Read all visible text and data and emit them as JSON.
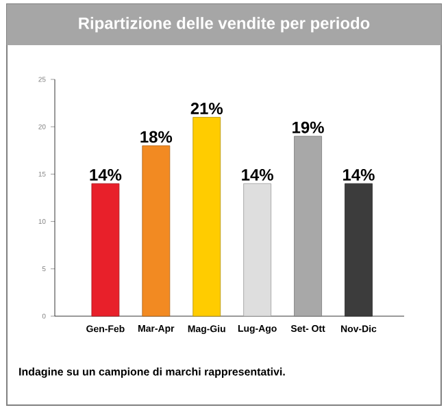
{
  "chart_data": {
    "type": "bar",
    "title": "Ripartizione delle vendite per periodo",
    "categories": [
      "Gen-Feb",
      "Mar-Apr",
      "Mag-Giu",
      "Lug-Ago",
      "Set- Ott",
      "Nov-Dic"
    ],
    "values": [
      14,
      18,
      21,
      14,
      19,
      14
    ],
    "value_labels": [
      "14%",
      "18%",
      "21%",
      "14%",
      "19%",
      "14%"
    ],
    "colors": [
      "#e8202a",
      "#f28a22",
      "#ffcc00",
      "#dedede",
      "#a8a8a8",
      "#3c3c3c"
    ],
    "ylim": [
      0,
      25
    ],
    "yticks": [
      0,
      5,
      10,
      15,
      20,
      25
    ],
    "grid": false,
    "annotations": [
      "Indagine su un campione di marchi rappresentativi."
    ]
  }
}
